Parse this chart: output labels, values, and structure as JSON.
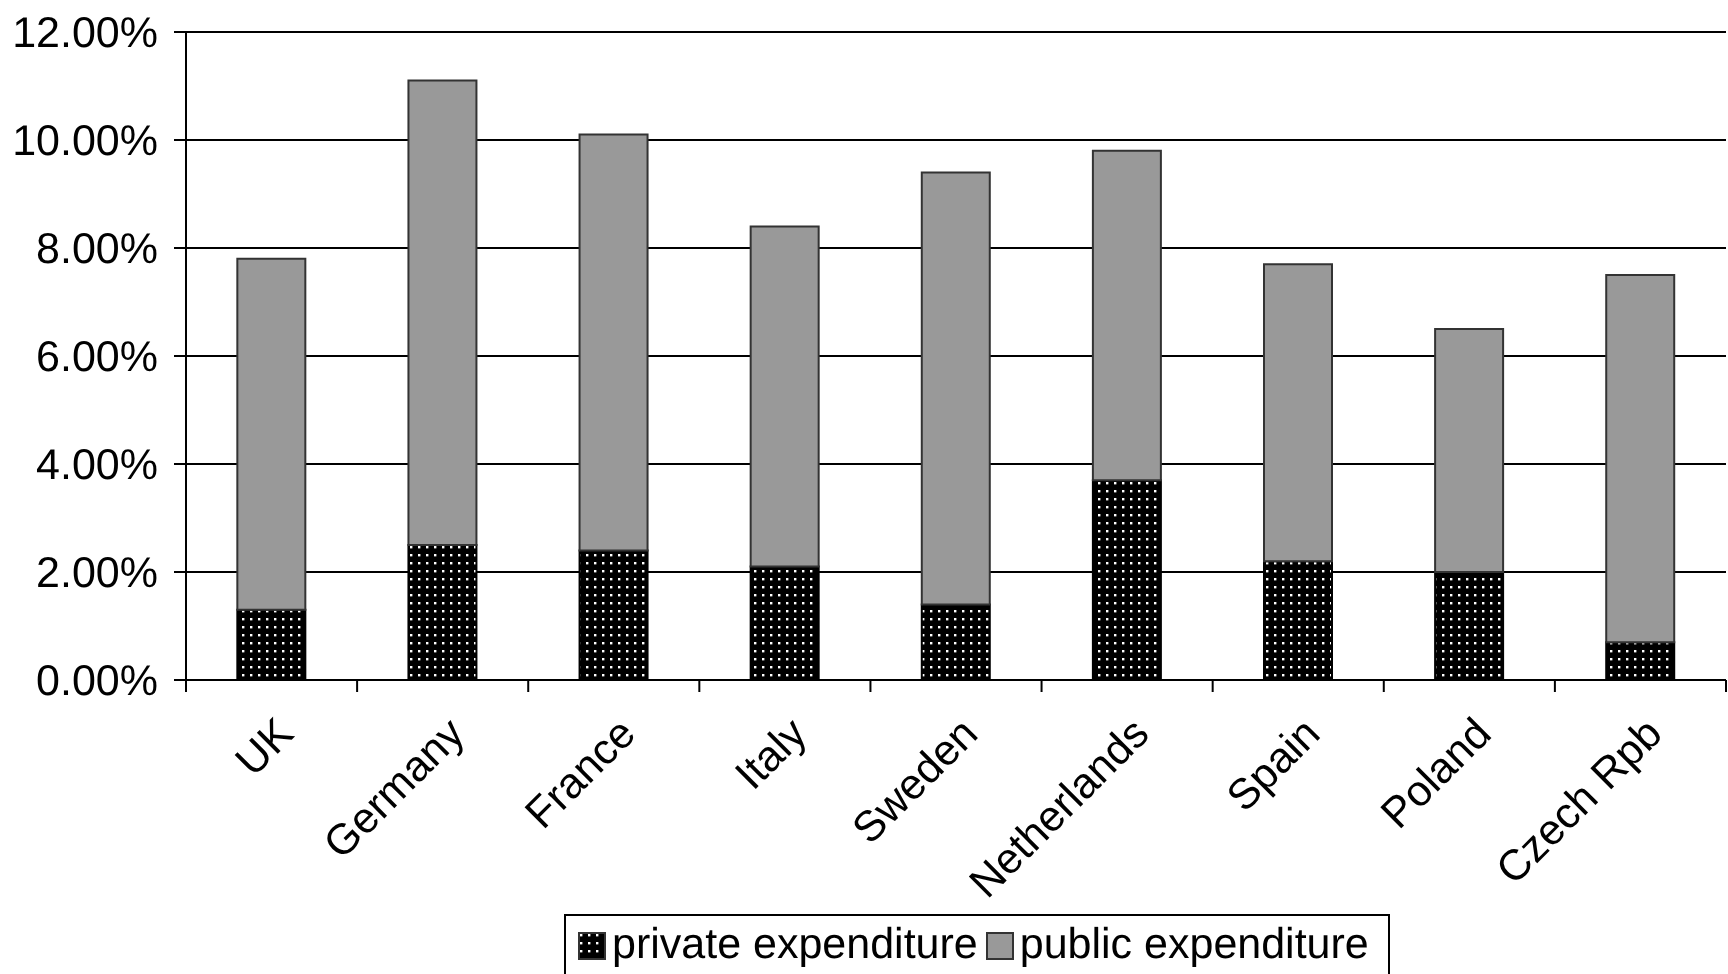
{
  "chart_data": {
    "type": "bar",
    "categories": [
      "UK",
      "Germany",
      "France",
      "Italy",
      "Sweden",
      "Netherlands",
      "Spain",
      "Poland",
      "Czech Rpb"
    ],
    "series": [
      {
        "name": "private expenditure",
        "color": "#000000",
        "values": [
          1.3,
          2.5,
          2.4,
          2.1,
          1.4,
          3.7,
          2.2,
          2.0,
          0.7
        ]
      },
      {
        "name": "public expenditure",
        "color": "#999999",
        "values": [
          6.5,
          8.6,
          7.7,
          6.3,
          8.0,
          6.1,
          5.5,
          4.5,
          6.8
        ]
      }
    ],
    "stacked": true,
    "ylim": [
      0,
      12
    ],
    "yticks": [
      {
        "value": 0,
        "label": "0.00%"
      },
      {
        "value": 2,
        "label": "2.00%"
      },
      {
        "value": 4,
        "label": "4.00%"
      },
      {
        "value": 6,
        "label": "6.00%"
      },
      {
        "value": 8,
        "label": "8.00%"
      },
      {
        "value": 10,
        "label": "10.00%"
      },
      {
        "value": 12,
        "label": "12.00%"
      }
    ],
    "grid": "y",
    "legend": "bottom"
  }
}
